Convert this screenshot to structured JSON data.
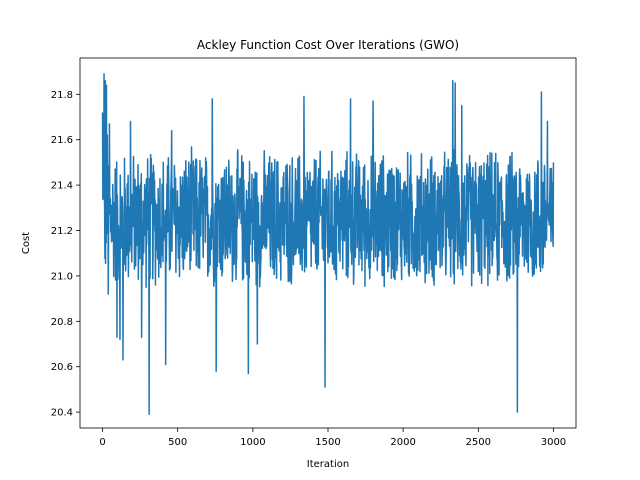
{
  "chart_data": {
    "type": "line",
    "title": "Ackley Function Cost Over Iterations (GWO)",
    "xlabel": "Iteration",
    "ylabel": "Cost",
    "xlim": [
      -150,
      3150
    ],
    "ylim": [
      20.33,
      21.96
    ],
    "xticks": [
      0,
      500,
      1000,
      1500,
      2000,
      2500,
      3000
    ],
    "yticks": [
      20.4,
      20.6,
      20.8,
      21.0,
      21.2,
      21.4,
      21.6,
      21.8
    ],
    "ytick_labels": [
      "20.4",
      "20.6",
      "20.8",
      "21.0",
      "21.2",
      "21.4",
      "21.6",
      "21.8"
    ],
    "grid": false,
    "legend": "none",
    "series": [
      {
        "color": "#1f77b4",
        "x_start": 0,
        "x_end": 3000,
        "points_note_free": true,
        "outliers": [
          {
            "x": 0,
            "y": 21.72
          },
          {
            "x": 5,
            "y": 21.52
          },
          {
            "x": 10,
            "y": 21.89
          },
          {
            "x": 18,
            "y": 21.86
          },
          {
            "x": 25,
            "y": 21.84
          },
          {
            "x": 32,
            "y": 21.62
          },
          {
            "x": 38,
            "y": 20.92
          },
          {
            "x": 45,
            "y": 21.67
          },
          {
            "x": 95,
            "y": 20.73
          },
          {
            "x": 115,
            "y": 20.72
          },
          {
            "x": 135,
            "y": 20.63
          },
          {
            "x": 185,
            "y": 21.68
          },
          {
            "x": 260,
            "y": 20.73
          },
          {
            "x": 310,
            "y": 20.39
          },
          {
            "x": 420,
            "y": 20.61
          },
          {
            "x": 460,
            "y": 21.64
          },
          {
            "x": 730,
            "y": 21.78
          },
          {
            "x": 755,
            "y": 20.58
          },
          {
            "x": 970,
            "y": 20.57
          },
          {
            "x": 1030,
            "y": 20.7
          },
          {
            "x": 1340,
            "y": 21.79
          },
          {
            "x": 1480,
            "y": 20.51
          },
          {
            "x": 1650,
            "y": 21.78
          },
          {
            "x": 1800,
            "y": 21.77
          },
          {
            "x": 2330,
            "y": 21.86
          },
          {
            "x": 2345,
            "y": 21.85
          },
          {
            "x": 2390,
            "y": 21.75
          },
          {
            "x": 2760,
            "y": 20.4
          },
          {
            "x": 2920,
            "y": 21.81
          },
          {
            "x": 2960,
            "y": 21.68
          },
          {
            "x": 3000,
            "y": 21.5
          }
        ],
        "band": {
          "low": 20.95,
          "high": 21.55,
          "center": 21.25
        }
      }
    ]
  }
}
